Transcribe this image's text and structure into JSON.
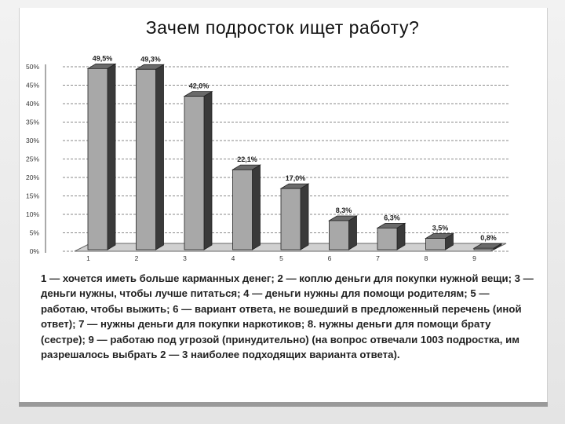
{
  "chart_data": {
    "type": "bar",
    "title": "Зачем подросток ищет работу?",
    "categories": [
      "1",
      "2",
      "3",
      "4",
      "5",
      "6",
      "7",
      "8",
      "9"
    ],
    "values": [
      49.5,
      49.3,
      42.0,
      22.1,
      17.0,
      8.3,
      6.3,
      3.5,
      0.8
    ],
    "value_labels": [
      "49,5%",
      "49,3%",
      "42,0%",
      "22,1%",
      "17,0%",
      "8,3%",
      "6,3%",
      "3,5%",
      "0,8%"
    ],
    "yticks": [
      "0%",
      "5%",
      "10%",
      "15%",
      "20%",
      "25%",
      "30%",
      "35%",
      "40%",
      "45%",
      "50%"
    ],
    "ylim": [
      0,
      50
    ],
    "grid": true,
    "bar_color": "#a8a8a8"
  },
  "caption": "1 — хочется иметь больше карманных денег; 2 — коплю деньги для покупки нужной вещи; 3 — деньги нужны, чтобы лучше питаться; 4 — деньги нужны для помощи родителям; 5 — работаю, чтобы выжить; 6 — вариант ответа, не вошедший в предложенный перечень (иной ответ); 7 — нужны деньги для покупки наркотиков; 8. нужны деньги для помощи брату (сестре); 9 — работаю под угрозой (принудительно) (на вопрос отвечали 1003 подростка, им разрешалось выбрать 2 — 3 наиболее подходящих варианта ответа)."
}
